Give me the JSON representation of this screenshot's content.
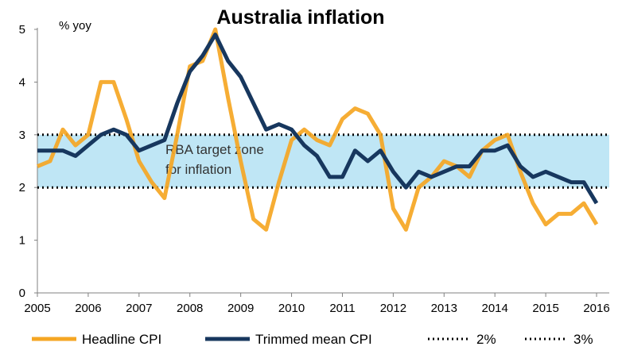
{
  "chart_data": {
    "type": "line",
    "title": "Australia inflation",
    "ylabel": "% yoy",
    "xlim": [
      2005,
      2016.25
    ],
    "ylim": [
      0,
      5
    ],
    "x_ticks": [
      2005,
      2006,
      2007,
      2008,
      2009,
      2010,
      2011,
      2012,
      2013,
      2014,
      2015,
      2016
    ],
    "y_ticks": [
      0,
      1,
      2,
      3,
      4,
      5
    ],
    "band": {
      "from": 2,
      "to": 3,
      "label_lines": [
        "RBA target zone",
        "for inflation"
      ],
      "color": "#bfe6f5"
    },
    "x": [
      2005.0,
      2005.25,
      2005.5,
      2005.75,
      2006.0,
      2006.25,
      2006.5,
      2006.75,
      2007.0,
      2007.25,
      2007.5,
      2007.75,
      2008.0,
      2008.25,
      2008.5,
      2008.75,
      2009.0,
      2009.25,
      2009.5,
      2009.75,
      2010.0,
      2010.25,
      2010.5,
      2010.75,
      2011.0,
      2011.25,
      2011.5,
      2011.75,
      2012.0,
      2012.25,
      2012.5,
      2012.75,
      2013.0,
      2013.25,
      2013.5,
      2013.75,
      2014.0,
      2014.25,
      2014.5,
      2014.75,
      2015.0,
      2015.25,
      2015.5,
      2015.75,
      2016.0
    ],
    "series": [
      {
        "name": "Headline CPI",
        "color": "#f5a623",
        "values": [
          2.4,
          2.5,
          3.1,
          2.8,
          3.0,
          4.0,
          4.0,
          3.3,
          2.5,
          2.1,
          1.8,
          3.0,
          4.3,
          4.4,
          5.0,
          3.7,
          2.5,
          1.4,
          1.2,
          2.1,
          2.9,
          3.1,
          2.9,
          2.8,
          3.3,
          3.5,
          3.4,
          3.0,
          1.6,
          1.2,
          2.0,
          2.2,
          2.5,
          2.4,
          2.2,
          2.7,
          2.9,
          3.0,
          2.3,
          1.7,
          1.3,
          1.5,
          1.5,
          1.7,
          1.3
        ]
      },
      {
        "name": "Trimmed mean CPI",
        "color": "#17375e",
        "values": [
          2.7,
          2.7,
          2.7,
          2.6,
          2.8,
          3.0,
          3.1,
          3.0,
          2.7,
          2.8,
          2.9,
          3.6,
          4.2,
          4.5,
          4.9,
          4.4,
          4.1,
          3.6,
          3.1,
          3.2,
          3.1,
          2.8,
          2.6,
          2.2,
          2.2,
          2.7,
          2.5,
          2.7,
          2.3,
          2.0,
          2.3,
          2.2,
          2.3,
          2.4,
          2.4,
          2.7,
          2.7,
          2.8,
          2.4,
          2.2,
          2.3,
          2.2,
          2.1,
          2.1,
          1.7
        ]
      },
      {
        "name": "2%",
        "color": "#000000",
        "style": "dotted",
        "constant": 2
      },
      {
        "name": "3%",
        "color": "#000000",
        "style": "dotted",
        "constant": 3
      }
    ],
    "legend_position": "bottom",
    "grid": false
  }
}
